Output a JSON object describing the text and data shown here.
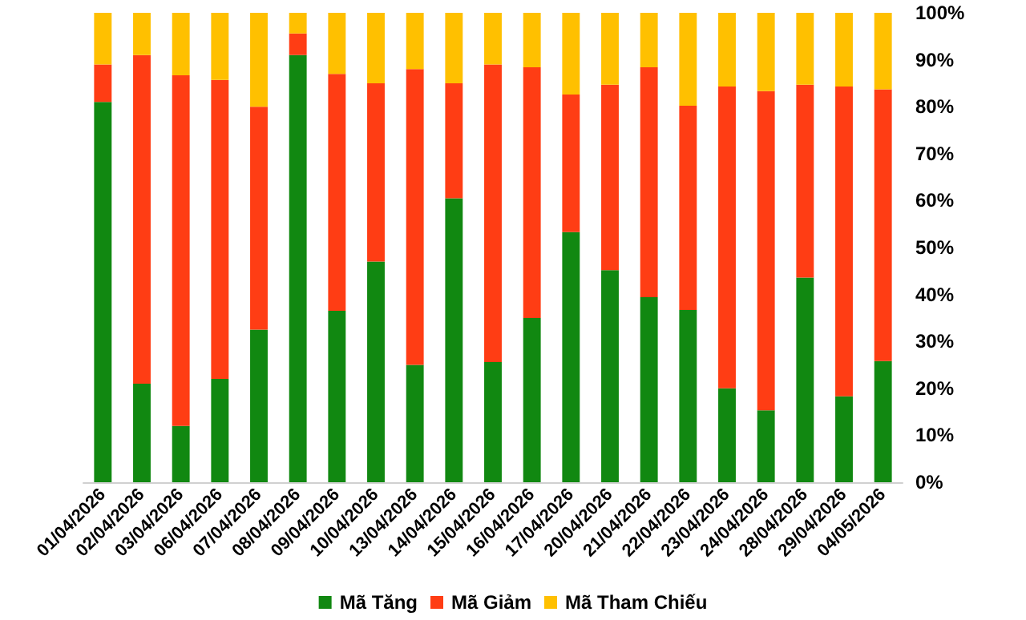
{
  "chart_data": {
    "type": "bar",
    "stacked": true,
    "categories": [
      "01/04/2026",
      "02/04/2026",
      "03/04/2026",
      "06/04/2026",
      "07/04/2026",
      "08/04/2026",
      "09/04/2026",
      "10/04/2026",
      "13/04/2026",
      "14/04/2026",
      "15/04/2026",
      "16/04/2026",
      "17/04/2026",
      "20/04/2026",
      "21/04/2026",
      "22/04/2026",
      "23/04/2026",
      "24/04/2026",
      "28/04/2026",
      "29/04/2026",
      "04/05/2026"
    ],
    "series": [
      {
        "name": "Mã Tăng",
        "color": "#118811",
        "values": [
          81,
          21,
          12,
          22,
          32.5,
          91,
          36.5,
          47,
          25,
          60.5,
          25.6,
          35,
          53.3,
          45.2,
          39.4,
          36.7,
          20,
          15.3,
          43.6,
          18.3,
          25.8
        ]
      },
      {
        "name": "Mã Giảm",
        "color": "#ff3d14",
        "values": [
          8,
          70,
          74.7,
          63.7,
          47.5,
          4.6,
          50.5,
          38,
          63,
          24.5,
          63.4,
          53.4,
          29.3,
          39.5,
          49,
          43.5,
          64.3,
          68,
          41.1,
          66,
          57.9
        ]
      },
      {
        "name": "Mã Tham Chiếu",
        "color": "#ffc000",
        "values": [
          11,
          9,
          13.3,
          14.3,
          20,
          4.4,
          13,
          15,
          12,
          15,
          11,
          11.6,
          17.4,
          15.3,
          11.6,
          19.8,
          15.7,
          16.7,
          15.3,
          15.7,
          16.3
        ]
      }
    ],
    "ylim": [
      0,
      100
    ],
    "yticks": [
      {
        "value": 0,
        "label": "0%"
      },
      {
        "value": 10,
        "label": "10%"
      },
      {
        "value": 20,
        "label": "20%"
      },
      {
        "value": 30,
        "label": "30%"
      },
      {
        "value": 40,
        "label": "40%"
      },
      {
        "value": 50,
        "label": "50%"
      },
      {
        "value": 60,
        "label": "60%"
      },
      {
        "value": 70,
        "label": "70%"
      },
      {
        "value": 80,
        "label": "80%"
      },
      {
        "value": 90,
        "label": "90%"
      },
      {
        "value": 100,
        "label": "100%"
      }
    ],
    "grid": false,
    "legend": "bottom"
  }
}
